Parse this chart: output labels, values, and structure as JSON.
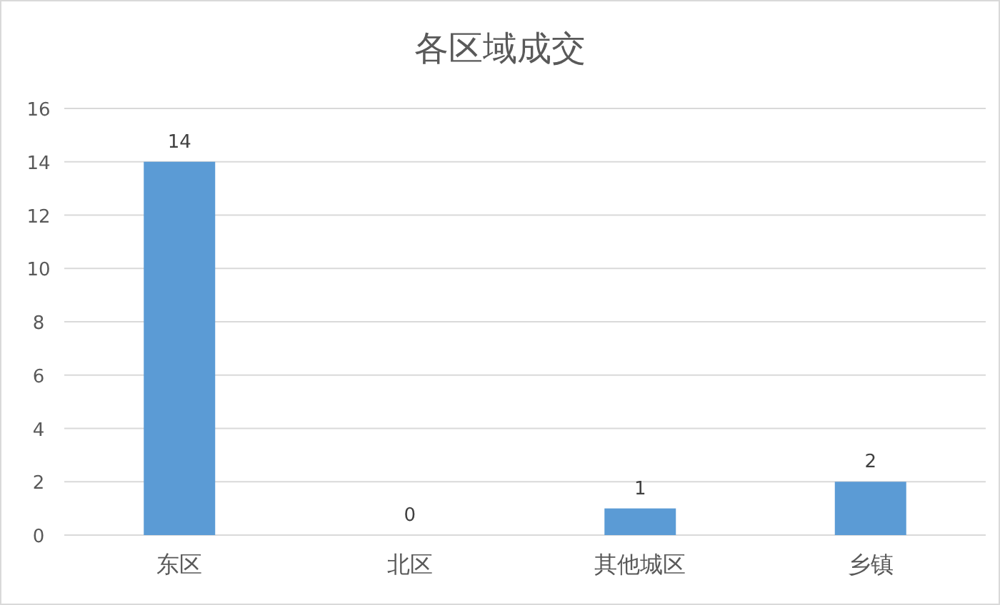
{
  "chart_data": {
    "type": "bar",
    "title": "各区域成交",
    "categories": [
      "东区",
      "北区",
      "其他城区",
      "乡镇"
    ],
    "values": [
      14,
      0,
      1,
      2
    ],
    "color": "#5b9bd5",
    "ylim": [
      0,
      16
    ],
    "yticks": [
      0,
      2,
      4,
      6,
      8,
      10,
      12,
      14,
      16
    ],
    "grid": "y",
    "data_labels": true
  }
}
